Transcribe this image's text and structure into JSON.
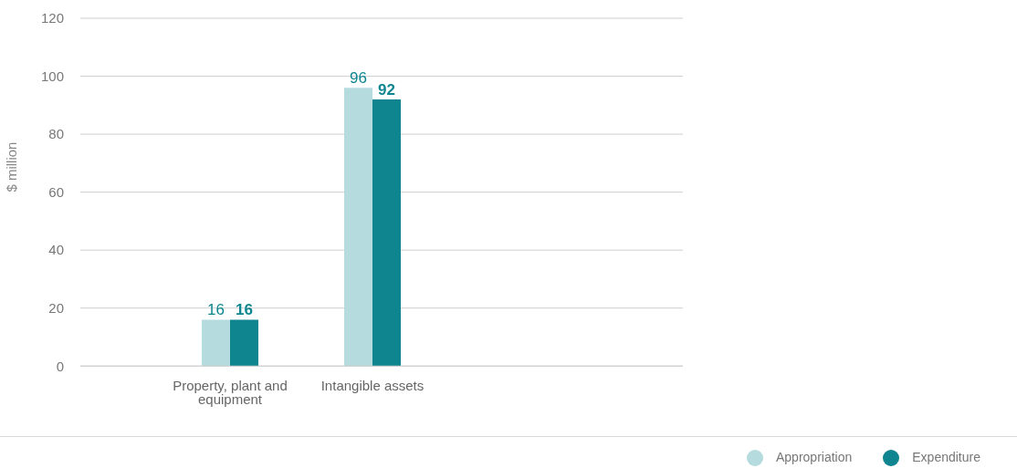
{
  "chart_data": {
    "type": "bar",
    "ylabel": "$ million",
    "categories": [
      "Property, plant and equipment",
      "Intangible assets"
    ],
    "series": [
      {
        "name": "Appropriation",
        "color": "#b5dbdf",
        "values": [
          16,
          96
        ]
      },
      {
        "name": "Expenditure",
        "color": "#0e858f",
        "values": [
          16,
          92
        ]
      }
    ],
    "ylim": [
      0,
      120
    ],
    "yticks": [
      0,
      20,
      40,
      60,
      80,
      100,
      120
    ],
    "grid": "y",
    "legend": "bottom right",
    "data_labels": true
  }
}
